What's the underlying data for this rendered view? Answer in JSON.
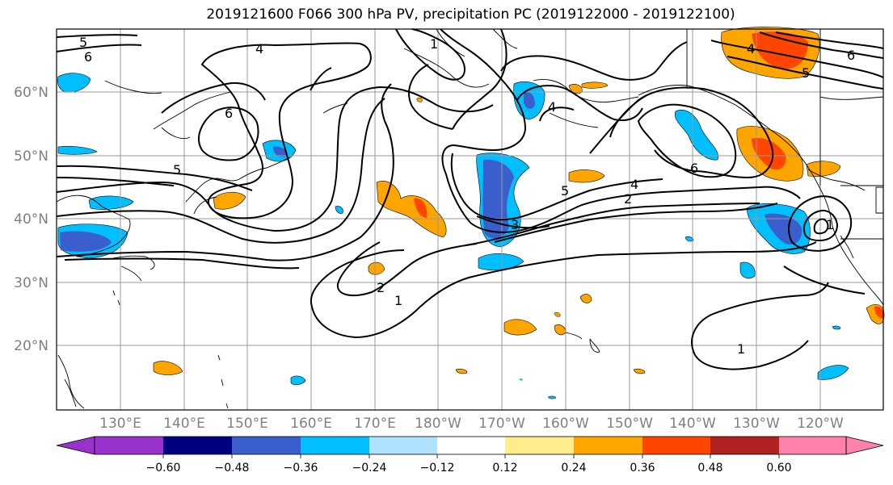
{
  "title": "2019121600 F066 300 hPa PV, precipitation PC (2019122000 - 2019122100)",
  "lat_labels": [
    "60°N",
    "50°N",
    "40°N",
    "30°N",
    "20°N"
  ],
  "lon_labels": [
    "130°E",
    "140°E",
    "150°E",
    "160°E",
    "170°E",
    "180°W",
    "170°W",
    "160°W",
    "150°W",
    "140°W",
    "130°W",
    "120°W"
  ],
  "contour_labels": [
    "5",
    "6",
    "4",
    "1",
    "4",
    "6",
    "5",
    "6",
    "4",
    "5",
    "2",
    "5",
    "4",
    "3",
    "6",
    "2",
    "1",
    "1",
    "1"
  ],
  "colorbar": {
    "ticks": [
      "−0.60",
      "−0.48",
      "−0.36",
      "−0.24",
      "−0.12",
      "0.12",
      "0.24",
      "0.36",
      "0.48",
      "0.60"
    ],
    "colors": [
      "#9932cc",
      "#000080",
      "#3a5fcd",
      "#00bfff",
      "#b0e2ff",
      "#ffffff",
      "#ffec8b",
      "#ffa500",
      "#ff4500",
      "#b22222",
      "#ff82ab"
    ]
  },
  "colors": {
    "grid": "#999999",
    "coast": "#000000",
    "contour": "#000000"
  }
}
